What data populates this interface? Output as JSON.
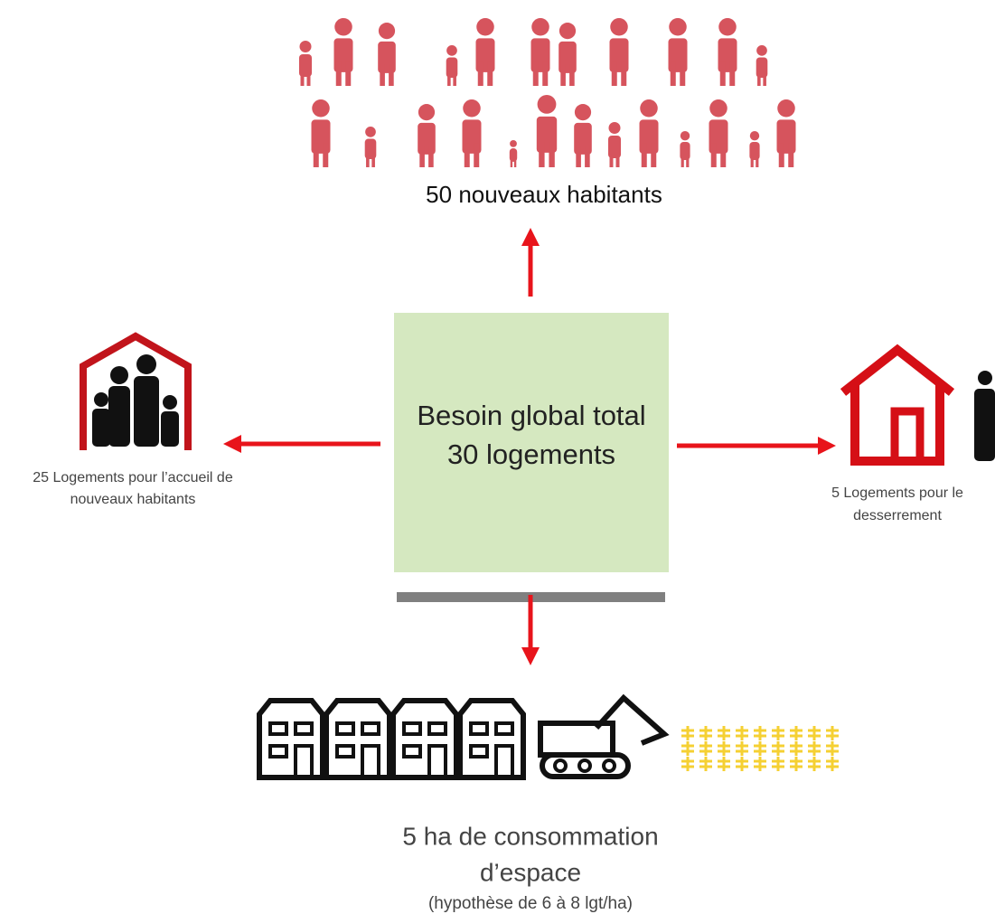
{
  "top": {
    "label": "50 nouveaux habitants"
  },
  "center": {
    "lines": [
      "Besoin global total",
      "30 logements"
    ]
  },
  "left": {
    "lines": [
      "25 Logements pour l’accueil de",
      "nouveaux habitants"
    ]
  },
  "right": {
    "lines": [
      "5 Logements pour le",
      "desserrement"
    ]
  },
  "bottom": {
    "lines": [
      "5 ha de consommation",
      "d’espace"
    ],
    "note": "(hypothèse de 6 à 8 lgt/ha)"
  }
}
